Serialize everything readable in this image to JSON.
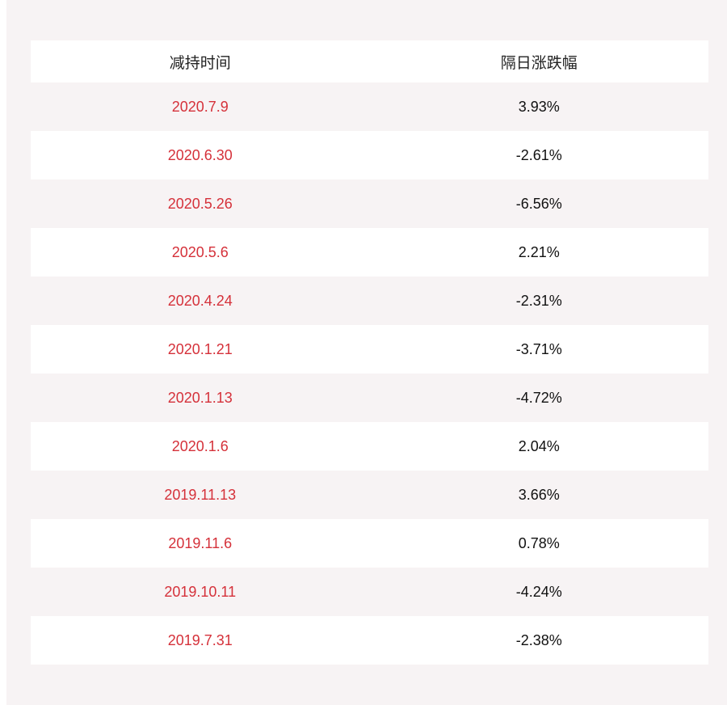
{
  "table": {
    "header": [
      "减持时间",
      "隔日涨跌幅"
    ],
    "rows": [
      [
        "2020.7.9",
        "3.93%"
      ],
      [
        "2020.6.30",
        "-2.61%"
      ],
      [
        "2020.5.26",
        "-6.56%"
      ],
      [
        "2020.5.6",
        "2.21%"
      ],
      [
        "2020.4.24",
        "-2.31%"
      ],
      [
        "2020.1.21",
        "-3.71%"
      ],
      [
        "2020.1.13",
        "-4.72%"
      ],
      [
        "2020.1.6",
        "2.04%"
      ],
      [
        "2019.11.13",
        "3.66%"
      ],
      [
        "2019.11.6",
        "0.78%"
      ],
      [
        "2019.10.11",
        "-4.24%"
      ],
      [
        "2019.7.31",
        "-2.38%"
      ]
    ]
  }
}
